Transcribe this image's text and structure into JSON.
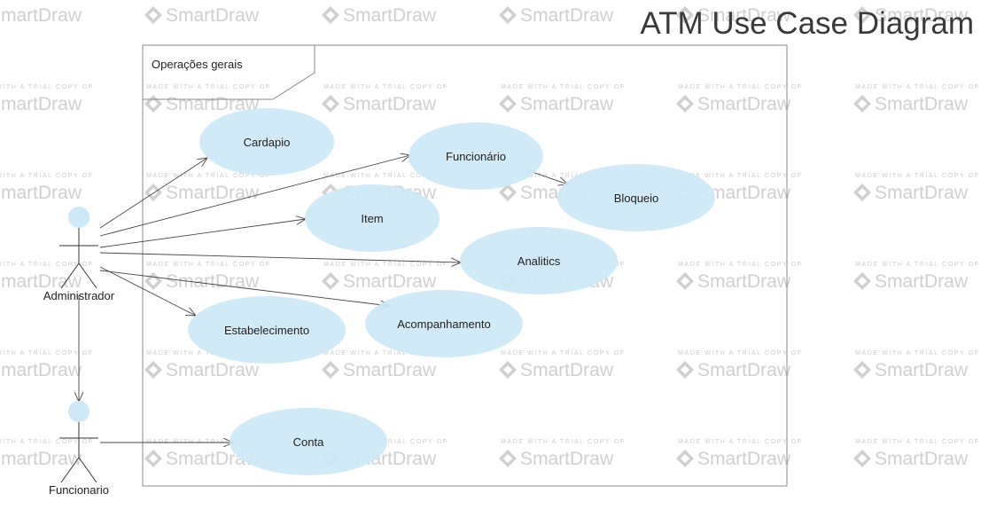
{
  "watermark": {
    "logo_text": "SmartDraw",
    "trial_text": "MADE WITH A TRIAL COPY OF"
  },
  "diagram": {
    "title": "ATM Use Case Diagram",
    "boundary_label": "Operações gerais",
    "actors": [
      {
        "id": "administrador",
        "label": "Administrador"
      },
      {
        "id": "funcionario",
        "label": "Funcionario"
      }
    ],
    "use_cases": [
      {
        "id": "cardapio",
        "label": "Cardapio"
      },
      {
        "id": "funcionario-uc",
        "label": "Funcionário"
      },
      {
        "id": "item",
        "label": "Item"
      },
      {
        "id": "bloqueio",
        "label": "Bloqueio"
      },
      {
        "id": "analitics",
        "label": "Analitics"
      },
      {
        "id": "estabelecimento",
        "label": "Estabelecimento"
      },
      {
        "id": "acompanhamento",
        "label": "Acompanhamento"
      },
      {
        "id": "conta",
        "label": "Conta"
      }
    ],
    "colors": {
      "use_case_fill": "#cde8f6",
      "line": "#444444",
      "frame": "#888888",
      "watermark": "#d0d0d0"
    }
  }
}
